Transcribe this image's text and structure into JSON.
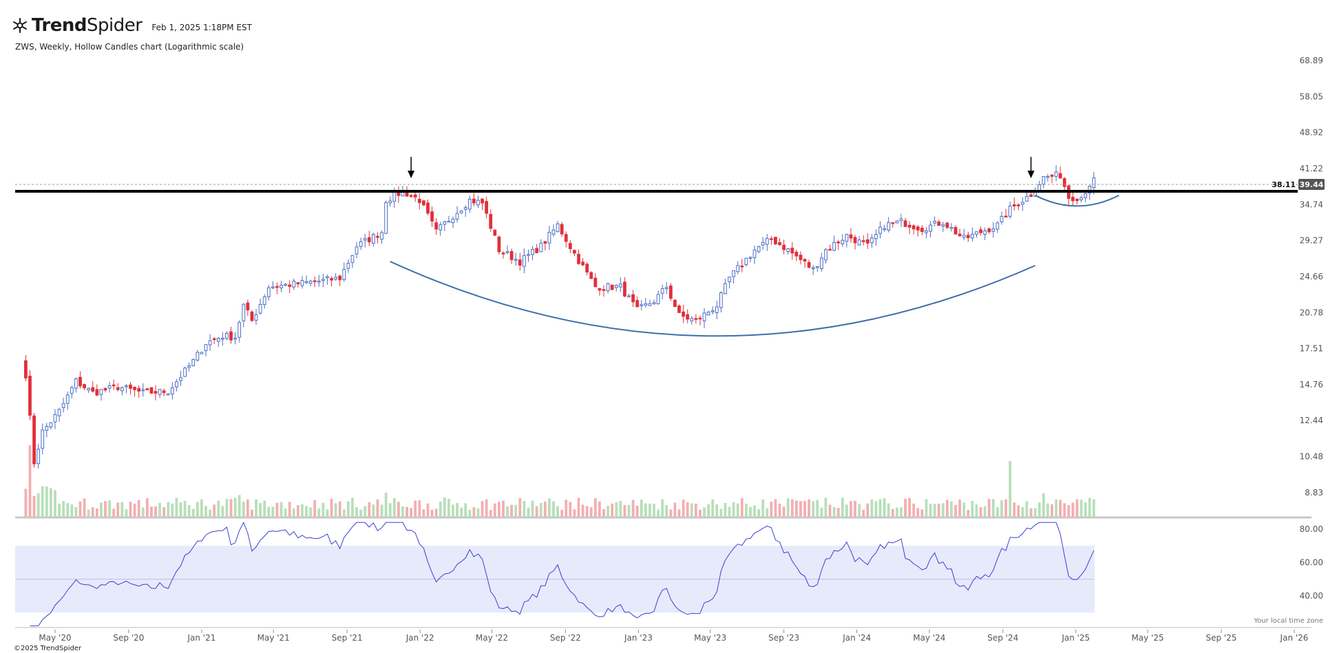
{
  "header": {
    "brand_bold": "Trend",
    "brand_light": "Spider",
    "timestamp": "Feb 1, 2025 1:18PM EST",
    "subtitle": "ZWS, Weekly, Hollow Candles chart (Logarithmic scale)"
  },
  "footer": {
    "copyright": "©2025 TrendSpider",
    "timezone_note": "Your local time zone"
  },
  "colors": {
    "up": "#4a6cc4",
    "down": "#e0303a",
    "vol_up": "#b7dfb8",
    "vol_down": "#f4aeb0",
    "rsi_line": "#3a3fd0",
    "rsi_band": "#e7eafb",
    "cup": "#3f6ea8"
  },
  "chart_data": {
    "type": "candlestick",
    "scale": "logarithmic",
    "interval": "Weekly",
    "symbol": "ZWS",
    "price_ticks": [
      "68.89",
      "58.05",
      "48.92",
      "41.22",
      "34.74",
      "29.27",
      "24.66",
      "20.78",
      "17.51",
      "14.76",
      "12.44",
      "10.48",
      "8.83"
    ],
    "rsi_ticks": [
      "80.00",
      "60.00",
      "40.00"
    ],
    "x_ticks": [
      "May '20",
      "Sep '20",
      "Jan '21",
      "May '21",
      "Sep '21",
      "Jan '22",
      "May '22",
      "Sep '22",
      "Jan '23",
      "May '23",
      "Sep '23",
      "Jan '24",
      "May '24",
      "Sep '24",
      "Jan '25",
      "May '25",
      "Sep '25",
      "Jan '26"
    ],
    "x_tick_dates": [
      "2020-05-01",
      "2020-09-01",
      "2021-01-01",
      "2021-05-01",
      "2021-09-01",
      "2022-01-01",
      "2022-05-01",
      "2022-09-01",
      "2023-01-01",
      "2023-05-01",
      "2023-09-01",
      "2024-01-01",
      "2024-05-01",
      "2024-09-01",
      "2025-01-01",
      "2025-05-01",
      "2025-09-01",
      "2026-01-01"
    ],
    "last_price": "39.44",
    "resistance_label": "38.11",
    "resistance_level": 38.11,
    "rsi_band": [
      30,
      70
    ],
    "price_path": [
      [
        "2020-03-13",
        15.5
      ],
      [
        "2020-03-27",
        10.2
      ],
      [
        "2020-04-10",
        11.8
      ],
      [
        "2020-05-08",
        13.0
      ],
      [
        "2020-06-05",
        15.0
      ],
      [
        "2020-07-03",
        14.2
      ],
      [
        "2020-08-14",
        14.6
      ],
      [
        "2020-09-25",
        14.2
      ],
      [
        "2020-11-06",
        14.3
      ],
      [
        "2020-12-18",
        16.5
      ],
      [
        "2021-01-08",
        18.0
      ],
      [
        "2021-02-05",
        18.6
      ],
      [
        "2021-02-26",
        18.5
      ],
      [
        "2021-03-12",
        21.5
      ],
      [
        "2021-03-26",
        20.0
      ],
      [
        "2021-04-23",
        23.5
      ],
      [
        "2021-06-04",
        23.8
      ],
      [
        "2021-07-23",
        24.2
      ],
      [
        "2021-08-20",
        24.5
      ],
      [
        "2021-09-17",
        28.5
      ],
      [
        "2021-10-29",
        30.5
      ],
      [
        "2021-11-05",
        35.5
      ],
      [
        "2021-12-03",
        37.0
      ],
      [
        "2021-12-31",
        35.5
      ],
      [
        "2022-01-28",
        30.5
      ],
      [
        "2022-02-25",
        33.0
      ],
      [
        "2022-03-25",
        35.5
      ],
      [
        "2022-04-15",
        35.0
      ],
      [
        "2022-05-13",
        28.0
      ],
      [
        "2022-06-17",
        26.5
      ],
      [
        "2022-07-22",
        28.5
      ],
      [
        "2022-08-19",
        31.5
      ],
      [
        "2022-09-16",
        27.5
      ],
      [
        "2022-10-21",
        23.5
      ],
      [
        "2022-12-02",
        23.5
      ],
      [
        "2022-12-30",
        21.0
      ],
      [
        "2023-01-27",
        22.0
      ],
      [
        "2023-02-17",
        23.5
      ],
      [
        "2023-03-10",
        20.5
      ],
      [
        "2023-04-07",
        20.0
      ],
      [
        "2023-05-12",
        21.5
      ],
      [
        "2023-06-02",
        24.5
      ],
      [
        "2023-07-14",
        28.0
      ],
      [
        "2023-08-11",
        29.5
      ],
      [
        "2023-09-08",
        28.0
      ],
      [
        "2023-10-20",
        25.5
      ],
      [
        "2023-11-10",
        28.0
      ],
      [
        "2023-12-15",
        30.0
      ],
      [
        "2024-01-19",
        28.5
      ],
      [
        "2024-02-16",
        31.5
      ],
      [
        "2024-03-15",
        32.0
      ],
      [
        "2024-04-19",
        31.0
      ],
      [
        "2024-05-24",
        32.0
      ],
      [
        "2024-06-28",
        29.5
      ],
      [
        "2024-07-26",
        30.5
      ],
      [
        "2024-08-23",
        31.5
      ],
      [
        "2024-09-13",
        34.0
      ],
      [
        "2024-10-18",
        36.5
      ],
      [
        "2024-11-08",
        39.5
      ],
      [
        "2024-12-06",
        40.0
      ],
      [
        "2024-12-20",
        36.0
      ],
      [
        "2025-01-10",
        36.0
      ],
      [
        "2025-01-31",
        39.44
      ]
    ],
    "volume_spikes": [
      [
        "2020-03-20",
        3.2
      ],
      [
        "2021-03-05",
        2.0
      ],
      [
        "2021-11-05",
        2.1
      ],
      [
        "2024-09-13",
        4.6
      ],
      [
        "2024-11-08",
        2.3
      ]
    ],
    "annotations": [
      {
        "type": "arrow-down",
        "date": "2021-12-17"
      },
      {
        "type": "arrow-down",
        "date": "2024-10-18"
      },
      {
        "type": "cup-arc",
        "start": "2021-11-12",
        "end": "2024-10-25",
        "start_price": 26.5,
        "bottom_price": 18.6,
        "end_price": 26.0
      },
      {
        "type": "handle-arc",
        "start": "2024-10-25",
        "end": "2025-03-14",
        "start_price": 36.3,
        "bottom_price": 34.5,
        "end_price": 36.3
      }
    ]
  }
}
